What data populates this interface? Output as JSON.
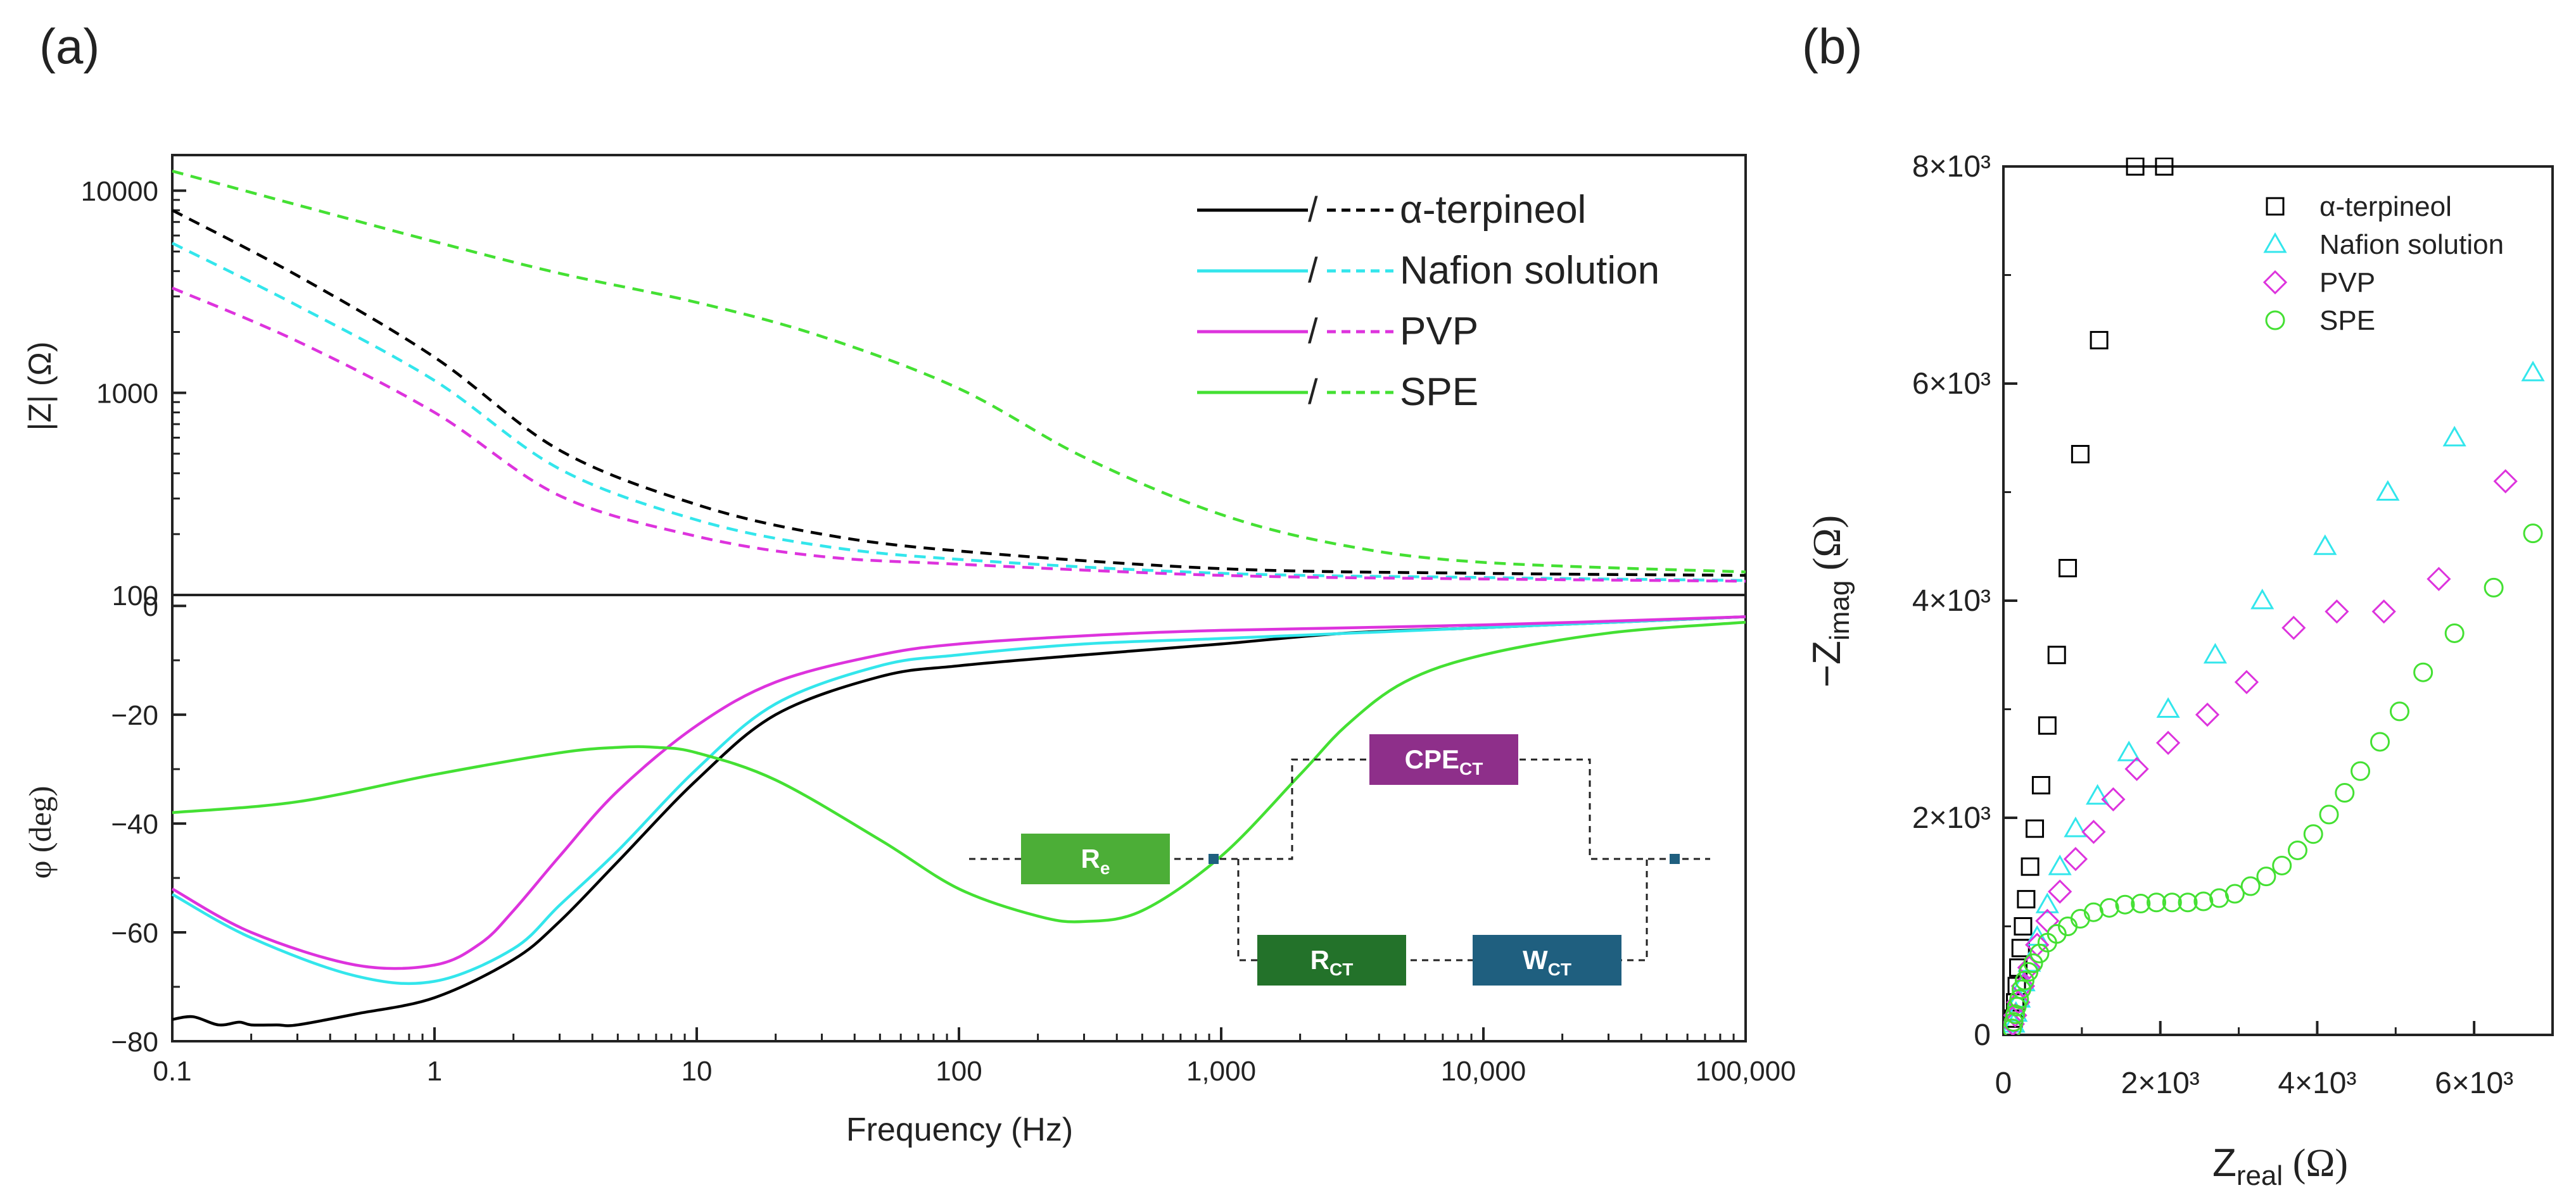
{
  "panels": {
    "a_label": "(a)",
    "b_label": "(b)"
  },
  "colors": {
    "alpha_terpineol": "#000000",
    "nafion": "#33e6ec",
    "pvp": "#dd33dd",
    "spe": "#44e033",
    "re_box": "#4cae37",
    "rct_box": "#23722a",
    "wct_box": "#1f5f7f",
    "cpe_box": "#8e2f8a"
  },
  "circuit": {
    "re": "R",
    "re_sub": "e",
    "rct": "R",
    "rct_sub": "CT",
    "wct": "W",
    "wct_sub": "CT",
    "cpe": "CPE",
    "cpe_sub": "CT"
  },
  "chart_data": [
    {
      "id": "a-top",
      "type": "line",
      "title": "",
      "xscale": "log",
      "yscale": "log",
      "xlim": [
        0.1,
        100000
      ],
      "ylim": [
        100,
        15000
      ],
      "ylabel": "|Z| (Ω)",
      "yticks": [
        100,
        1000,
        10000
      ],
      "ytick_labels": [
        "100",
        "1000",
        "10000"
      ],
      "legend": {
        "location": "top-right",
        "solid_dash_sep": "/"
      },
      "series": [
        {
          "name": "α-terpineol",
          "key": "alpha_terpineol",
          "style": "dashed",
          "x": [
            0.1,
            0.3,
            1,
            3,
            10,
            30,
            100,
            1000,
            10000,
            100000
          ],
          "y": [
            8000,
            3800,
            1500,
            520,
            280,
            200,
            165,
            135,
            128,
            125
          ]
        },
        {
          "name": "Nafion solution",
          "key": "nafion",
          "style": "dashed",
          "x": [
            0.1,
            0.3,
            1,
            3,
            10,
            30,
            100,
            1000,
            10000,
            100000
          ],
          "y": [
            5500,
            2700,
            1150,
            420,
            235,
            175,
            150,
            128,
            122,
            118
          ]
        },
        {
          "name": "PVP",
          "key": "pvp",
          "style": "dashed",
          "x": [
            0.1,
            0.3,
            1,
            3,
            10,
            30,
            100,
            1000,
            10000,
            100000
          ],
          "y": [
            3300,
            1800,
            800,
            310,
            195,
            155,
            142,
            125,
            120,
            117
          ]
        },
        {
          "name": "SPE",
          "key": "spe",
          "style": "dashed",
          "x": [
            0.1,
            0.3,
            1,
            3,
            10,
            30,
            100,
            300,
            1000,
            3000,
            10000,
            100000
          ],
          "y": [
            12500,
            8500,
            5600,
            3900,
            2800,
            1900,
            1050,
            480,
            250,
            175,
            145,
            130
          ]
        }
      ]
    },
    {
      "id": "a-bottom",
      "type": "line",
      "title": "",
      "xscale": "log",
      "xlim": [
        0.1,
        100000
      ],
      "ylim": [
        -80,
        2
      ],
      "xlabel": "Frequency (Hz)",
      "ylabel": "φ (deg)",
      "xticks": [
        0.1,
        1,
        10,
        100,
        1000,
        10000,
        100000
      ],
      "xtick_labels": [
        "0.1",
        "1",
        "10",
        "100",
        "1,000",
        "10,000",
        "100,000"
      ],
      "yticks": [
        0,
        -20,
        -40,
        -60,
        -80
      ],
      "ytick_labels": [
        "0",
        "−20",
        "−40",
        "−60",
        "−80"
      ],
      "series": [
        {
          "name": "α-terpineol",
          "key": "alpha_terpineol",
          "style": "solid",
          "x": [
            0.1,
            0.12,
            0.15,
            0.18,
            0.2,
            0.25,
            0.3,
            0.5,
            1,
            2,
            3,
            5,
            10,
            20,
            50,
            100,
            300,
            1000,
            3000,
            10000,
            100000
          ],
          "y": [
            -76,
            -75.5,
            -77,
            -76.5,
            -77,
            -77,
            -77,
            -75,
            -72,
            -65,
            -58,
            -47,
            -32,
            -20,
            -13,
            -11,
            -9,
            -7,
            -5,
            -4,
            -2
          ]
        },
        {
          "name": "Nafion solution",
          "key": "nafion",
          "style": "solid",
          "x": [
            0.1,
            0.2,
            0.5,
            1,
            2,
            3,
            5,
            10,
            20,
            50,
            100,
            300,
            1000,
            10000,
            100000
          ],
          "y": [
            -53,
            -61,
            -68,
            -69,
            -63,
            -55,
            -45,
            -30,
            -18,
            -11,
            -9,
            -7,
            -6,
            -4,
            -2
          ]
        },
        {
          "name": "PVP",
          "key": "pvp",
          "style": "solid",
          "x": [
            0.1,
            0.2,
            0.5,
            1,
            1.5,
            2,
            3,
            5,
            10,
            20,
            50,
            100,
            300,
            1000,
            10000,
            100000
          ],
          "y": [
            -52,
            -60,
            -66,
            -66,
            -62,
            -56,
            -46,
            -34,
            -22,
            -14,
            -9,
            -7,
            -5.5,
            -4.5,
            -3.5,
            -2
          ]
        },
        {
          "name": "SPE",
          "key": "spe",
          "style": "solid",
          "x": [
            0.1,
            0.3,
            1,
            3,
            5,
            7,
            10,
            20,
            50,
            100,
            200,
            300,
            500,
            1000,
            2000,
            3000,
            5000,
            10000,
            30000,
            100000
          ],
          "y": [
            -38,
            -36,
            -31,
            -27,
            -26,
            -26,
            -27,
            -32,
            -43,
            -52,
            -57,
            -58,
            -56,
            -46,
            -31,
            -22,
            -14,
            -9,
            -5,
            -3
          ]
        }
      ]
    },
    {
      "id": "b",
      "type": "scatter",
      "title": "",
      "xlim": [
        0,
        7000
      ],
      "ylim": [
        0,
        8000
      ],
      "xlabel_main": "Z",
      "xlabel_sub": "real",
      "xlabel_unit": " (Ω)",
      "ylabel_main": "−Z",
      "ylabel_sub": "imag",
      "ylabel_unit": " (Ω)",
      "xticks": [
        0,
        2000,
        4000,
        6000
      ],
      "xtick_labels": [
        "0",
        "2×10³",
        "4×10³",
        "6×10³"
      ],
      "yticks": [
        0,
        2000,
        4000,
        6000,
        8000
      ],
      "ytick_labels": [
        "0",
        "2×10³",
        "4×10³",
        "6×10³",
        "8×10³"
      ],
      "legend": {
        "location": "top-right"
      },
      "series": [
        {
          "name": "α-terpineol",
          "key": "alpha_terpineol",
          "marker": "square",
          "x": [
            130,
            150,
            170,
            190,
            220,
            250,
            290,
            340,
            400,
            480,
            560,
            680,
            820,
            980,
            1220,
            1680,
            2050
          ],
          "y": [
            150,
            300,
            450,
            620,
            800,
            1000,
            1250,
            1550,
            1900,
            2300,
            2850,
            3500,
            4300,
            5350,
            6400,
            8000,
            8000
          ]
        },
        {
          "name": "Nafion solution",
          "key": "nafion",
          "marker": "triangle",
          "x": [
            130,
            160,
            200,
            260,
            330,
            430,
            560,
            720,
            920,
            1200,
            1600,
            2100,
            2700,
            3300,
            4100,
            4900,
            5750,
            6750
          ],
          "y": [
            100,
            200,
            330,
            480,
            660,
            900,
            1200,
            1550,
            1900,
            2200,
            2600,
            3000,
            3500,
            4000,
            4500,
            5000,
            5500,
            6100
          ]
        },
        {
          "name": "PVP",
          "key": "pvp",
          "marker": "diamond",
          "x": [
            120,
            150,
            190,
            250,
            330,
            430,
            560,
            720,
            920,
            1150,
            1400,
            1700,
            2100,
            2600,
            3100,
            3700,
            4250,
            4850,
            5550,
            6400
          ],
          "y": [
            100,
            180,
            300,
            450,
            620,
            830,
            1050,
            1320,
            1620,
            1870,
            2170,
            2450,
            2690,
            2950,
            3250,
            3750,
            3900,
            3900,
            4200,
            5100
          ]
        },
        {
          "name": "SPE",
          "key": "spe",
          "marker": "circle",
          "x": [
            110,
            130,
            150,
            170,
            200,
            230,
            270,
            320,
            380,
            460,
            560,
            680,
            820,
            980,
            1150,
            1350,
            1550,
            1750,
            1950,
            2150,
            2350,
            2550,
            2750,
            2950,
            3150,
            3350,
            3550,
            3750,
            3950,
            4150,
            4350,
            4550,
            4800,
            5050,
            5350,
            5750,
            6250,
            6750
          ],
          "y": [
            60,
            120,
            190,
            260,
            330,
            420,
            500,
            580,
            660,
            750,
            850,
            930,
            1000,
            1070,
            1130,
            1170,
            1200,
            1210,
            1220,
            1220,
            1220,
            1230,
            1260,
            1300,
            1370,
            1460,
            1560,
            1700,
            1850,
            2030,
            2230,
            2430,
            2700,
            2980,
            3340,
            3700,
            4120,
            4620
          ]
        }
      ]
    }
  ]
}
